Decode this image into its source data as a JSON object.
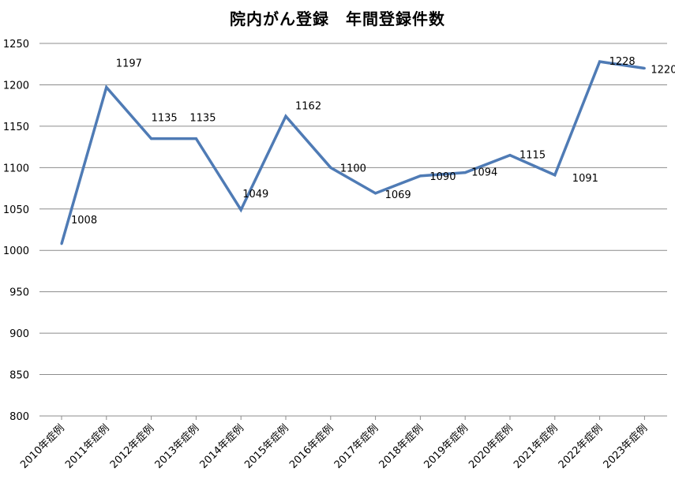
{
  "chart_data": {
    "type": "line",
    "title": "院内がん登録　年間登録件数",
    "categories": [
      "2010年症例",
      "2011年症例",
      "2012年症例",
      "2013年症例",
      "2014年症例",
      "2015年症例",
      "2016年症例",
      "2017年症例",
      "2018年症例",
      "2019年症例",
      "2020年症例",
      "2021年症例",
      "2022年症例",
      "2023年症例"
    ],
    "values": [
      1008,
      1197,
      1135,
      1135,
      1049,
      1162,
      1100,
      1069,
      1090,
      1094,
      1115,
      1091,
      1228,
      1220
    ],
    "ylim": [
      800,
      1250
    ],
    "yticks": [
      800,
      850,
      900,
      950,
      1000,
      1050,
      1100,
      1150,
      1200,
      1250
    ],
    "grid": true,
    "legend": "none",
    "line_color": "#4f7bb5"
  }
}
